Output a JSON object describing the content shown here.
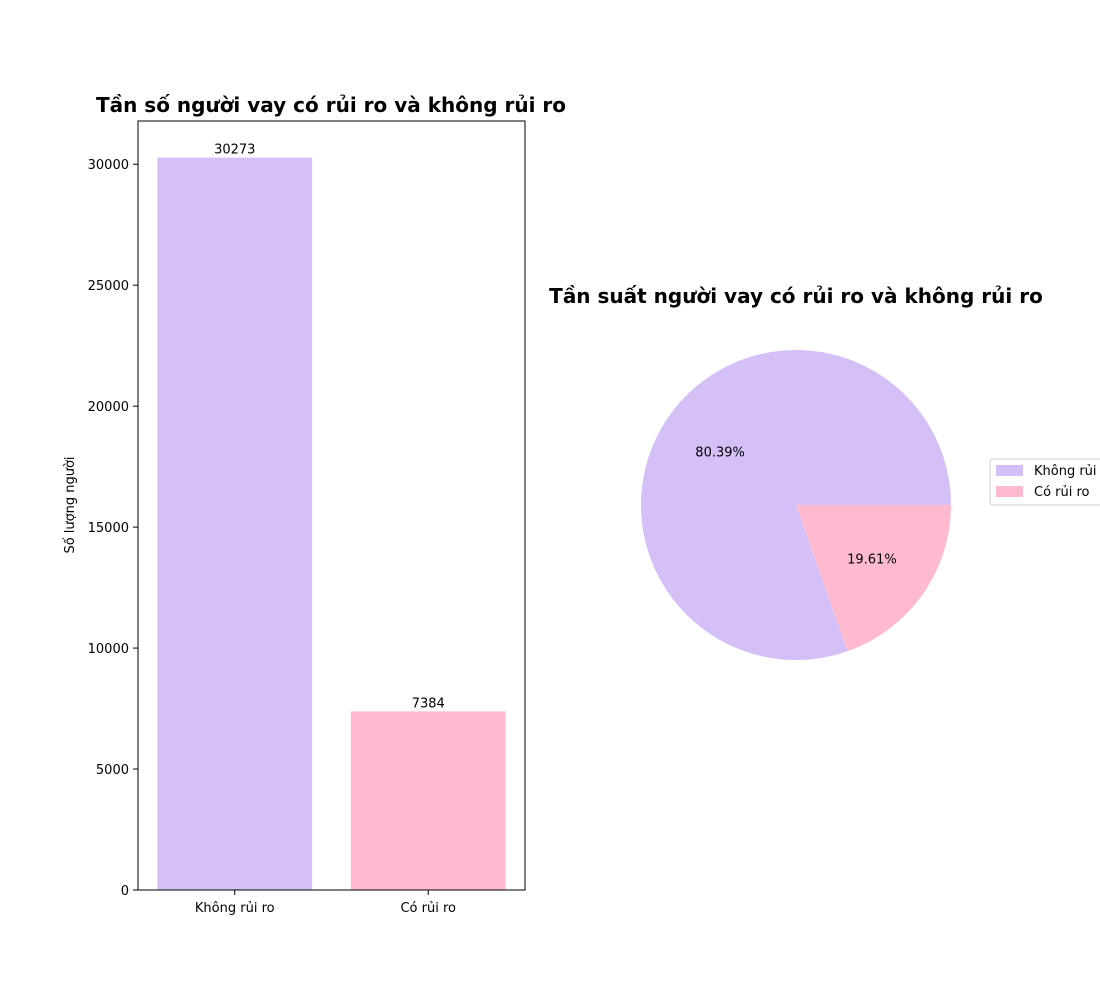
{
  "chart_data": [
    {
      "type": "bar",
      "title": "Tần số người vay có rủi ro và không rủi ro",
      "xlabel": "",
      "ylabel": "Số lượng người",
      "categories": [
        "Không rủi ro",
        "Có rủi ro"
      ],
      "values": [
        30273,
        7384
      ],
      "value_labels": [
        "30273",
        "7384"
      ],
      "colors": [
        "#d4c0f7",
        "#ffbacf"
      ],
      "ylim": [
        0,
        31787
      ],
      "yticks": [
        0,
        5000,
        10000,
        15000,
        20000,
        25000,
        30000
      ],
      "ytick_labels": [
        "0",
        "5000",
        "10000",
        "15000",
        "20000",
        "25000",
        "30000"
      ],
      "grid": false
    },
    {
      "type": "pie",
      "title": "Tần suất người vay có rủi ro và không rủi ro",
      "labels": [
        "Không rủi ro",
        "Có rủi ro"
      ],
      "values": [
        80.39,
        19.61
      ],
      "value_labels": [
        "80.39%",
        "19.61%"
      ],
      "colors": [
        "#d4c0f7",
        "#ffbacf"
      ],
      "legend_entries": [
        "Không rủi ro",
        "Có rủi ro"
      ],
      "legend_placement": "right"
    }
  ]
}
